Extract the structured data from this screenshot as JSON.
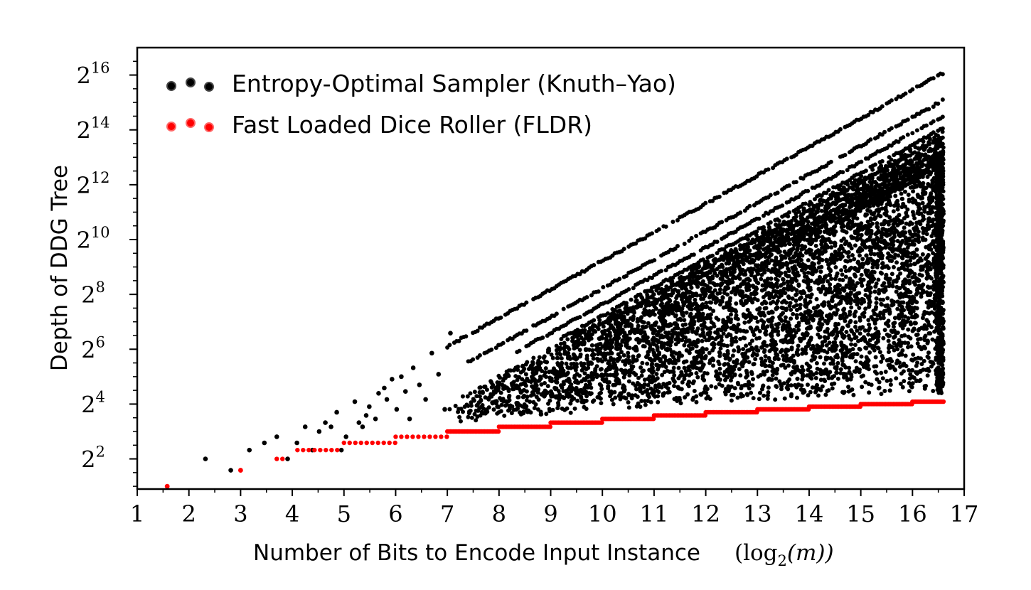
{
  "chart_data": {
    "type": "scatter",
    "xlabel": "Number of Bits to Encode Input Instance",
    "xlabel_math": "(log",
    "xlabel_math_sub": "2",
    "xlabel_math_tail": "(m))",
    "ylabel": "Depth of DDG Tree",
    "xlim": [
      1,
      17
    ],
    "ylim_log2": [
      0.9,
      17.0
    ],
    "y_scale": "log2",
    "grid": false,
    "legend_position": "top-left",
    "x_ticks": [
      "1",
      "2",
      "3",
      "4",
      "5",
      "6",
      "7",
      "8",
      "9",
      "10",
      "11",
      "12",
      "13",
      "14",
      "15",
      "16",
      "17"
    ],
    "y_ticks": [
      {
        "base": "2",
        "exp": "2",
        "log2": 2
      },
      {
        "base": "2",
        "exp": "4",
        "log2": 4
      },
      {
        "base": "2",
        "exp": "6",
        "log2": 6
      },
      {
        "base": "2",
        "exp": "8",
        "log2": 8
      },
      {
        "base": "2",
        "exp": "10",
        "log2": 10
      },
      {
        "base": "2",
        "exp": "12",
        "log2": 12
      },
      {
        "base": "2",
        "exp": "14",
        "log2": 14
      },
      {
        "base": "2",
        "exp": "16",
        "log2": 16
      }
    ],
    "series": [
      {
        "name": "Entropy-Optimal Sampler (Knuth–Yao)",
        "color": "#000000",
        "description_of_trend": "upper envelope depth = m, dense band below",
        "upper_envelope": {
          "x": [
            2,
            17
          ],
          "log2_y": [
            1,
            16.6
          ]
        },
        "points": [
          {
            "x": 2.32,
            "y": 4
          },
          {
            "x": 2.81,
            "y": 3
          },
          {
            "x": 3.17,
            "y": 5
          },
          {
            "x": 3.46,
            "y": 6
          },
          {
            "x": 3.7,
            "y": 7
          },
          {
            "x": 3.91,
            "y": 4
          },
          {
            "x": 4.09,
            "y": 6
          },
          {
            "x": 4.25,
            "y": 9
          },
          {
            "x": 4.39,
            "y": 5
          },
          {
            "x": 4.52,
            "y": 8
          },
          {
            "x": 4.64,
            "y": 10
          },
          {
            "x": 4.75,
            "y": 9
          },
          {
            "x": 4.86,
            "y": 13
          },
          {
            "x": 4.95,
            "y": 5
          },
          {
            "x": 5.04,
            "y": 7
          },
          {
            "x": 5.21,
            "y": 17
          },
          {
            "x": 5.29,
            "y": 10
          },
          {
            "x": 5.36,
            "y": 9
          },
          {
            "x": 5.43,
            "y": 12
          },
          {
            "x": 5.49,
            "y": 15
          },
          {
            "x": 5.61,
            "y": 11
          },
          {
            "x": 5.67,
            "y": 21
          },
          {
            "x": 5.78,
            "y": 24
          },
          {
            "x": 5.83,
            "y": 18
          },
          {
            "x": 5.93,
            "y": 30
          },
          {
            "x": 6.02,
            "y": 14
          },
          {
            "x": 6.11,
            "y": 32
          },
          {
            "x": 6.19,
            "y": 22
          },
          {
            "x": 6.27,
            "y": 11
          },
          {
            "x": 6.34,
            "y": 40
          },
          {
            "x": 6.46,
            "y": 26
          },
          {
            "x": 6.58,
            "y": 18
          },
          {
            "x": 6.7,
            "y": 58
          },
          {
            "x": 6.83,
            "y": 34
          },
          {
            "x": 6.95,
            "y": 14
          },
          {
            "x": 7.06,
            "y": 96
          }
        ]
      },
      {
        "name": "Fast Loaded Dice Roller (FLDR)",
        "color": "#ff0000",
        "description_of_trend": "step function, depth approx m+1",
        "steps": [
          {
            "x_start": 1.58,
            "x_end": 1.58,
            "y": 2
          },
          {
            "x_start": 3.0,
            "x_end": 3.0,
            "y": 3
          },
          {
            "x_start": 3.7,
            "x_end": 3.9,
            "y": 4
          },
          {
            "x_start": 4.1,
            "x_end": 4.9,
            "y": 5
          },
          {
            "x_start": 5.0,
            "x_end": 6.0,
            "y": 6
          },
          {
            "x_start": 6.0,
            "x_end": 7.0,
            "y": 7
          },
          {
            "x_start": 7.0,
            "x_end": 8.0,
            "y": 8
          },
          {
            "x_start": 8.0,
            "x_end": 9.0,
            "y": 9
          },
          {
            "x_start": 9.0,
            "x_end": 10.0,
            "y": 10
          },
          {
            "x_start": 10.0,
            "x_end": 11.0,
            "y": 11
          },
          {
            "x_start": 11.0,
            "x_end": 12.0,
            "y": 12
          },
          {
            "x_start": 12.0,
            "x_end": 13.0,
            "y": 13
          },
          {
            "x_start": 13.0,
            "x_end": 14.0,
            "y": 14
          },
          {
            "x_start": 14.0,
            "x_end": 15.0,
            "y": 15
          },
          {
            "x_start": 15.0,
            "x_end": 16.0,
            "y": 16
          },
          {
            "x_start": 16.0,
            "x_end": 16.6,
            "y": 17
          }
        ]
      }
    ]
  }
}
